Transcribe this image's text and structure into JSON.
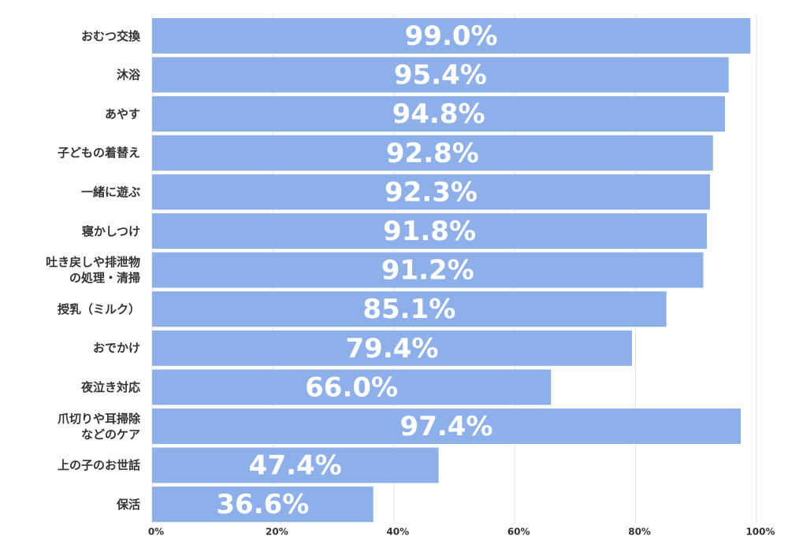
{
  "chart_data": {
    "type": "bar",
    "orientation": "horizontal",
    "categories": [
      "おむつ交換",
      "沐浴",
      "あやす",
      "子どもの着替え",
      "一緒に遊ぶ",
      "寝かしつけ",
      "吐き戻しや排泄物\nの処理・清掃",
      "授乳（ミルク）",
      "おでかけ",
      "夜泣き対応",
      "爪切りや耳掃除\nなどのケア",
      "上の子のお世話",
      "保活"
    ],
    "values": [
      99.0,
      95.4,
      94.8,
      92.8,
      92.3,
      91.8,
      91.2,
      85.1,
      79.4,
      66.0,
      97.4,
      47.4,
      36.6
    ],
    "value_labels": [
      "99.0%",
      "95.4%",
      "94.8%",
      "92.8%",
      "92.3%",
      "91.8%",
      "91.2%",
      "85.1%",
      "79.4%",
      "66.0%",
      "97.4%",
      "47.4%",
      "36.6%"
    ],
    "color": "#8eb0ea",
    "xlim": [
      0,
      100
    ],
    "xticks": [
      {
        "value": 0,
        "label": "0%"
      },
      {
        "value": 20,
        "label": "20%"
      },
      {
        "value": 40,
        "label": "40%"
      },
      {
        "value": 60,
        "label": "60%"
      },
      {
        "value": 80,
        "label": "80%"
      },
      {
        "value": 100,
        "label": "100%"
      }
    ],
    "grid": true
  }
}
